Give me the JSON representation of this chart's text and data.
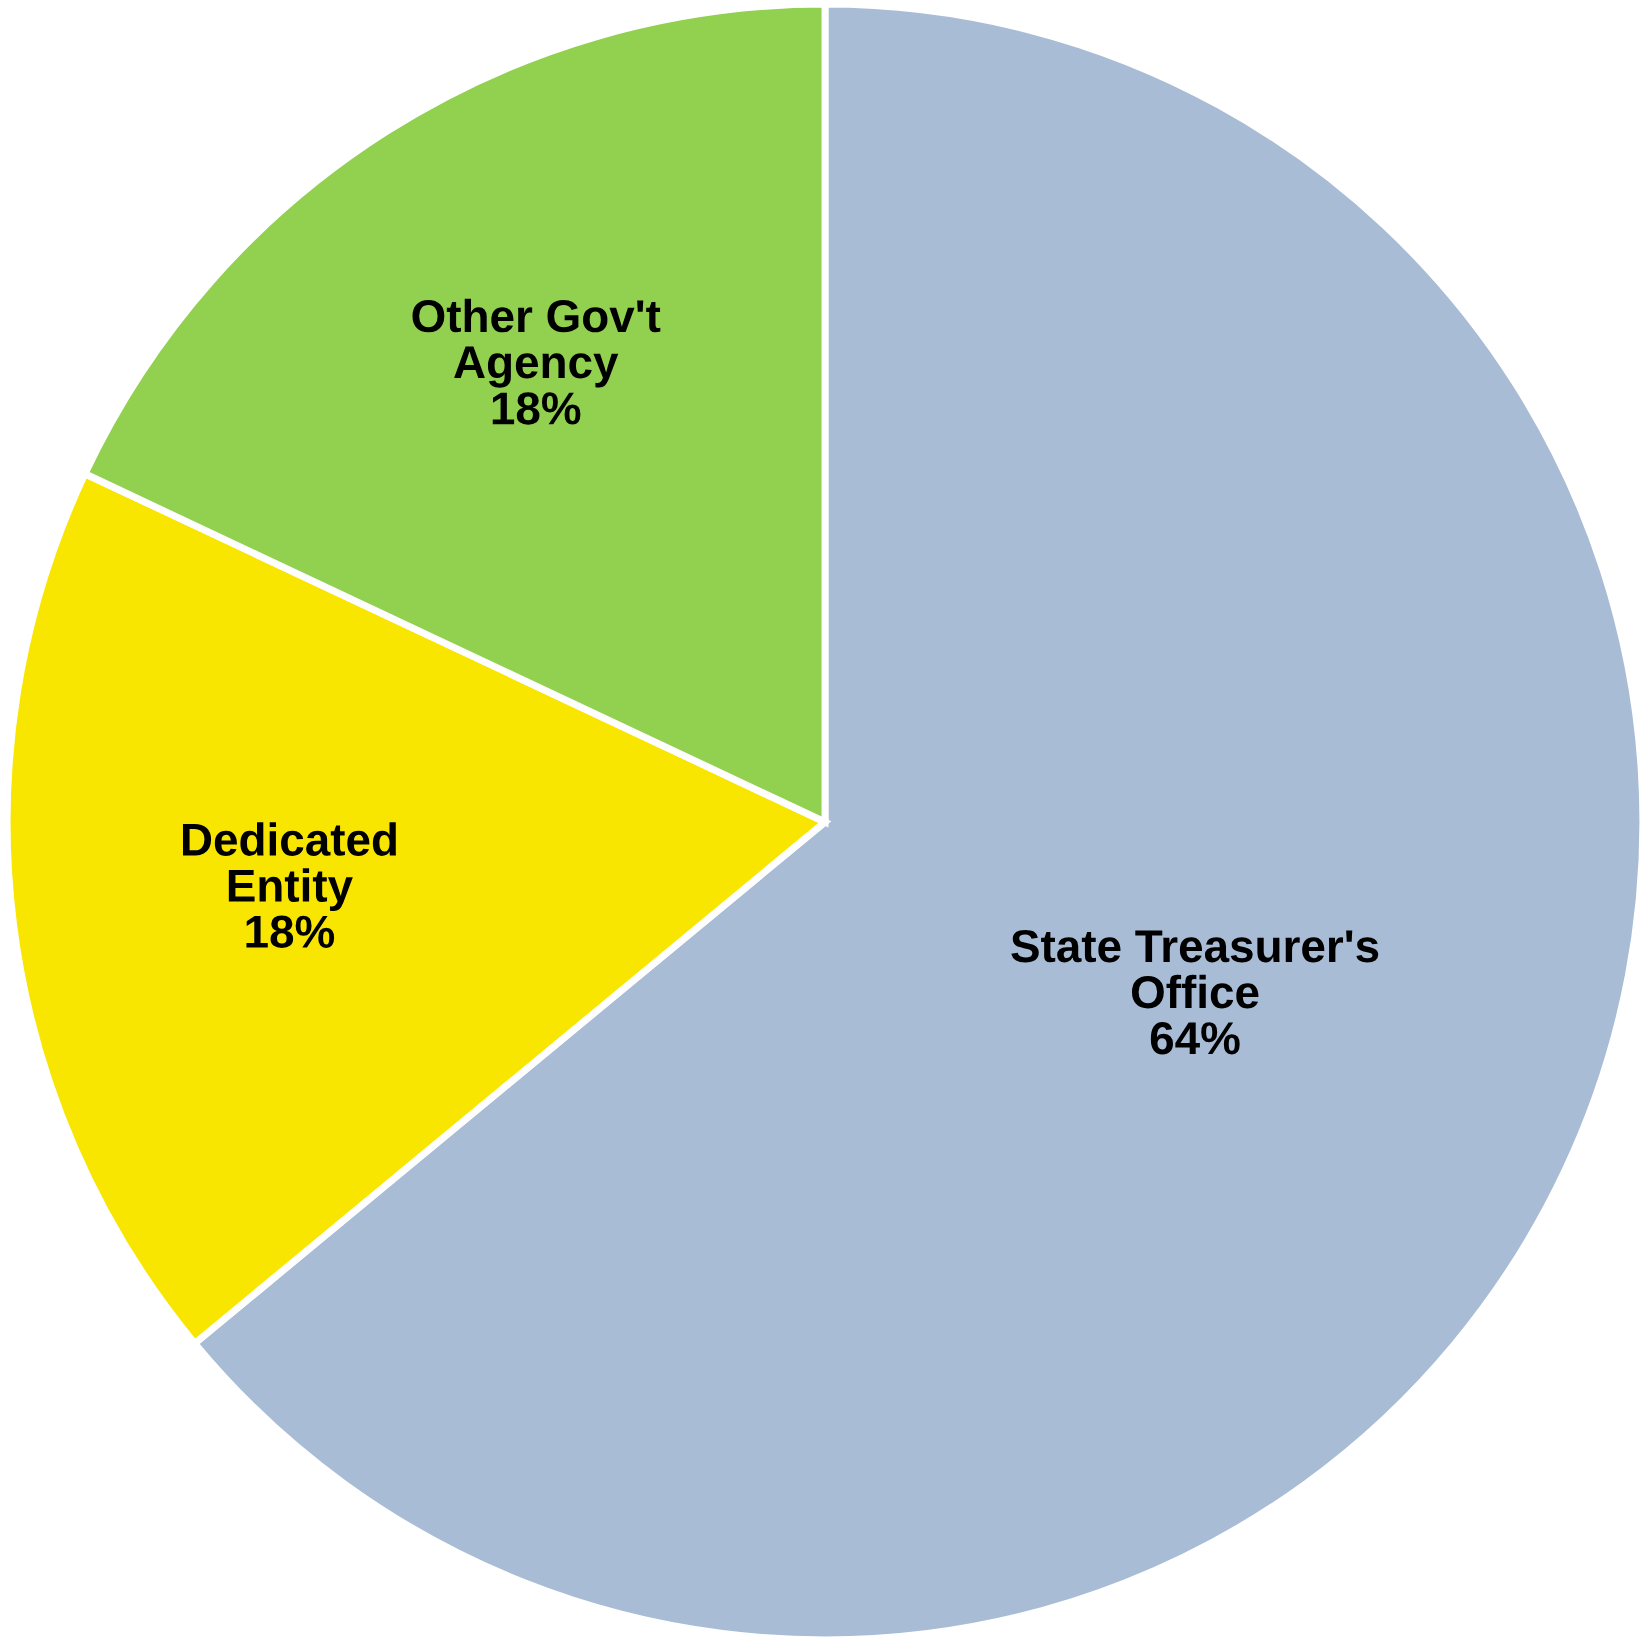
{
  "chart_data": {
    "type": "pie",
    "categories": [
      "State Treasurer's\nOffice",
      "Dedicated\nEntity",
      "Other Gov't\nAgency"
    ],
    "values": [
      64,
      18,
      18
    ],
    "colors": [
      "#a9bcd5",
      "#f9e600",
      "#92d050"
    ],
    "value_labels": [
      "64%",
      "18%",
      "18%"
    ]
  }
}
